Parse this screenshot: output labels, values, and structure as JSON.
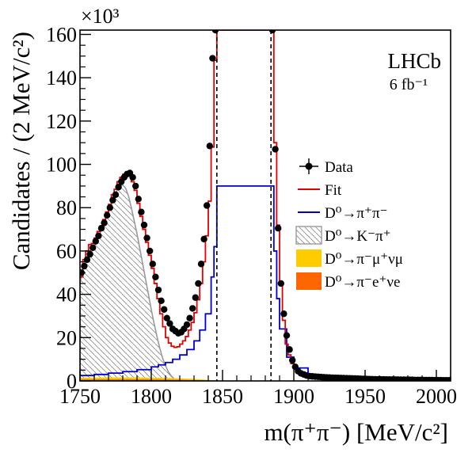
{
  "chart_data": {
    "type": "line",
    "xlabel": "m(π⁺π⁻) [MeV/c²]",
    "ylabel": "Candidates / (2 MeV/c²)",
    "xlim": [
      1750,
      2010
    ],
    "ylim": [
      0,
      162000
    ],
    "x_ticks": [
      "1750",
      "1800",
      "1850",
      "1900",
      "1950",
      "2000"
    ],
    "y_ticks": [
      "0",
      "20",
      "40",
      "60",
      "80",
      "100",
      "120",
      "140",
      "160"
    ],
    "y_multiplier": "×10³",
    "corner_label": "LHCb",
    "luminosity": "6 fb⁻¹",
    "signal_window": [
      1846,
      1884
    ],
    "legend": {
      "position": "right",
      "entries": [
        {
          "label": "Data",
          "style": "marker",
          "color": "#000000"
        },
        {
          "label": "Fit",
          "style": "line",
          "color": "#e00000"
        },
        {
          "label": "D⁰→π⁺π⁻",
          "style": "line",
          "color": "#0000cc"
        },
        {
          "label": "D⁰→K⁻π⁺",
          "style": "hatch",
          "color": "#999999"
        },
        {
          "label": "D⁰→π⁻μ⁺νμ",
          "style": "fill",
          "color": "#ffcc00"
        },
        {
          "label": "D⁰→π⁻e⁺νe",
          "style": "fill",
          "color": "#ff6600"
        }
      ]
    },
    "series": [
      {
        "name": "Data",
        "x": [
          1751,
          1753,
          1755,
          1757,
          1759,
          1761,
          1763,
          1765,
          1767,
          1769,
          1771,
          1773,
          1775,
          1777,
          1779,
          1781,
          1783,
          1785,
          1787,
          1789,
          1791,
          1793,
          1795,
          1797,
          1799,
          1801,
          1803,
          1805,
          1807,
          1809,
          1811,
          1813,
          1815,
          1817,
          1819,
          1821,
          1823,
          1825,
          1827,
          1829,
          1831,
          1833,
          1835,
          1837,
          1839,
          1841,
          1843,
          1845,
          1885,
          1887,
          1889,
          1891,
          1893,
          1895,
          1897,
          1899,
          1901,
          1903,
          1905,
          1907,
          1909,
          1911,
          1913,
          1915,
          1917,
          1919,
          1921,
          1923,
          1925,
          1927,
          1929,
          1931,
          1933,
          1935,
          1937,
          1939,
          1941,
          1943,
          1945,
          1947,
          1949,
          1951,
          1953,
          1955,
          1957,
          1959,
          1961,
          1963,
          1965,
          1967,
          1969,
          1971,
          1973,
          1975,
          1977,
          1979,
          1981,
          1983,
          1985,
          1987,
          1989,
          1991,
          1993,
          1995,
          1997,
          1999,
          2001,
          2003,
          2005,
          2007,
          2009
        ],
        "y": [
          50000,
          53000,
          56000,
          58500,
          61500,
          64500,
          67000,
          70500,
          73000,
          76500,
          80000,
          83500,
          86000,
          89500,
          92000,
          94000,
          95500,
          96000,
          94000,
          90000,
          84000,
          78000,
          72000,
          66000,
          60000,
          54000,
          48000,
          42000,
          37000,
          33000,
          29000,
          26500,
          24000,
          23000,
          22000,
          22500,
          24000,
          26000,
          29000,
          33500,
          38500,
          45000,
          54000,
          65500,
          81000,
          108500,
          149000,
          162000,
          162000,
          107000,
          70500,
          45000,
          31000,
          21000,
          14500,
          9500,
          6500,
          4500,
          3500,
          3000,
          2500,
          2200,
          2100,
          2000,
          1900,
          1800,
          1700,
          1600,
          1550,
          1500,
          1450,
          1400,
          1350,
          1300,
          1250,
          1200,
          1150,
          1100,
          1050,
          1000,
          950,
          900,
          850,
          800,
          750,
          700,
          700,
          700,
          650,
          650,
          600,
          600,
          600,
          550,
          550,
          500,
          500,
          500,
          450,
          450,
          450,
          400,
          400,
          400,
          400,
          350,
          350,
          350,
          300,
          300,
          300
        ]
      },
      {
        "name": "Fit",
        "x": [
          1750,
          1752,
          1754,
          1756,
          1758,
          1760,
          1762,
          1764,
          1766,
          1768,
          1770,
          1772,
          1774,
          1776,
          1778,
          1780,
          1782,
          1784,
          1786,
          1788,
          1790,
          1792,
          1794,
          1796,
          1798,
          1800,
          1802,
          1804,
          1806,
          1808,
          1810,
          1812,
          1814,
          1816,
          1818,
          1820,
          1822,
          1824,
          1826,
          1828,
          1830,
          1832,
          1834,
          1836,
          1838,
          1840,
          1842,
          1844,
          1846,
          1884,
          1886,
          1888,
          1890,
          1892,
          1894,
          1896,
          1898,
          1900,
          1902,
          1904,
          1906,
          1908,
          1910,
          1915,
          1920,
          1930,
          1940,
          1950,
          1960,
          1970,
          1980,
          1990,
          2000,
          2010
        ],
        "y": [
          48000,
          56000,
          60000,
          63000,
          63500,
          66000,
          69000,
          71500,
          74500,
          78000,
          81500,
          86000,
          88500,
          92000,
          94000,
          95500,
          96000,
          95000,
          92000,
          88000,
          82000,
          76000,
          70000,
          64000,
          58000,
          52000,
          45000,
          38000,
          31000,
          25000,
          20000,
          17500,
          16000,
          15500,
          15800,
          17000,
          18500,
          20500,
          23500,
          27000,
          31500,
          37500,
          45000,
          55000,
          67000,
          83000,
          108000,
          148000,
          162000,
          162000,
          110000,
          72000,
          44000,
          28000,
          17000,
          12000,
          8000,
          6000,
          4800,
          3600,
          2800,
          2300,
          2000,
          1700,
          1500,
          1300,
          1100,
          900,
          800,
          700,
          600,
          500,
          400,
          350
        ]
      },
      {
        "name": "D⁰→π⁺π⁻",
        "x": [
          1750,
          1760,
          1770,
          1780,
          1790,
          1800,
          1805,
          1810,
          1815,
          1820,
          1825,
          1830,
          1834,
          1838,
          1842,
          1844,
          1846,
          1884,
          1886,
          1888,
          1890,
          1895,
          1900,
          1910,
          1930,
          1960,
          2010
        ],
        "y": [
          2500,
          3000,
          3600,
          4300,
          5200,
          6500,
          7400,
          8500,
          10000,
          12000,
          14500,
          18500,
          23500,
          31000,
          48000,
          62000,
          90000,
          90000,
          60000,
          38000,
          24000,
          11000,
          6000,
          2500,
          1200,
          700,
          300
        ]
      },
      {
        "name": "D⁰→K⁻π⁺",
        "x": [
          1750,
          1752,
          1754,
          1756,
          1758,
          1760,
          1762,
          1764,
          1766,
          1768,
          1770,
          1772,
          1774,
          1776,
          1778,
          1780,
          1782,
          1784,
          1786,
          1788,
          1790,
          1792,
          1794,
          1796,
          1798,
          1800,
          1802,
          1804,
          1806,
          1808,
          1810,
          1812,
          1814,
          1816,
          1818,
          1820
        ],
        "y": [
          45000,
          52000,
          56000,
          58000,
          59500,
          62000,
          65000,
          68000,
          71500,
          75000,
          78500,
          82000,
          85000,
          88000,
          90000,
          90500,
          89000,
          85500,
          80000,
          74000,
          68000,
          61000,
          54000,
          47000,
          40000,
          33000,
          26500,
          20500,
          15000,
          10500,
          7000,
          4200,
          2300,
          1000,
          300,
          0
        ]
      },
      {
        "name": "D⁰→π⁻μ⁺νμ",
        "x": [
          1750,
          1770,
          1790,
          1810,
          1830,
          1840,
          1850
        ],
        "y": [
          1500,
          1600,
          1600,
          1400,
          900,
          500,
          0
        ]
      },
      {
        "name": "D⁰→π⁻e⁺νe",
        "x": [
          1750,
          1770,
          1790,
          1810,
          1830,
          1840,
          1850
        ],
        "y": [
          700,
          750,
          750,
          650,
          400,
          200,
          0
        ]
      }
    ]
  }
}
